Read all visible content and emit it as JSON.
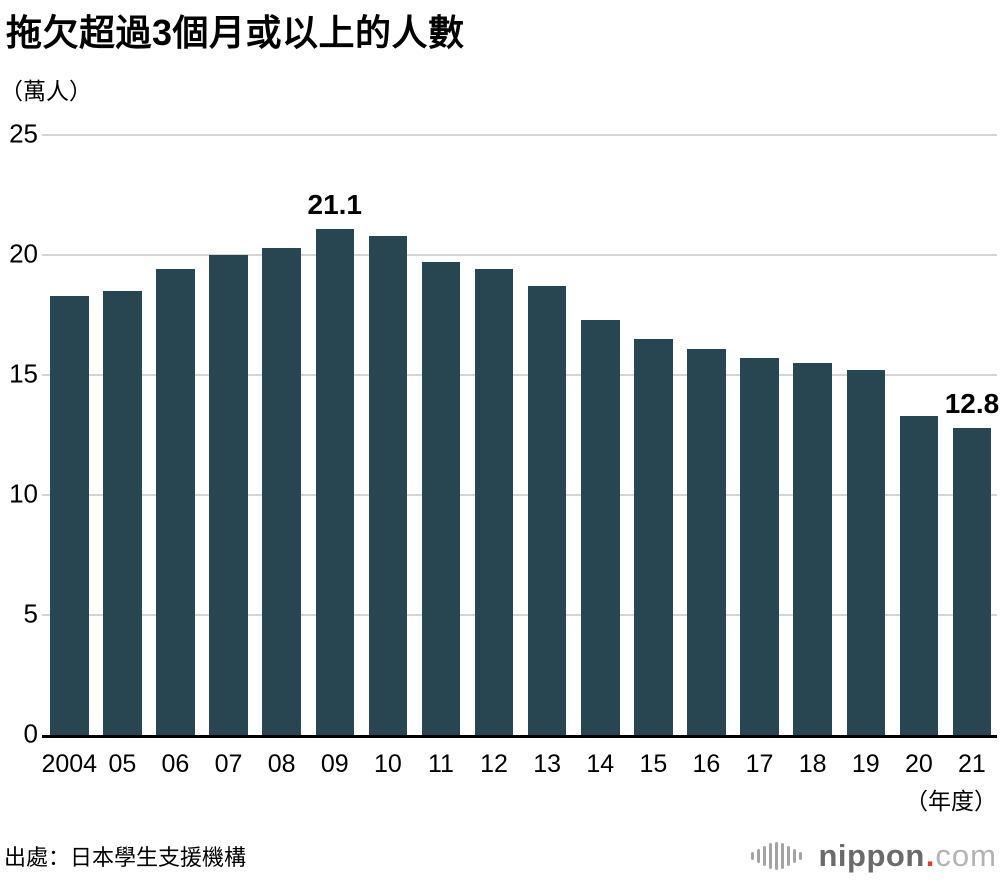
{
  "page": {
    "title": "拖欠超過3個月或以上的人數",
    "unit_label": "（萬人）",
    "x_axis_suffix": "（年度）",
    "source": "出處：日本學生支援機構",
    "logo": {
      "name": "nippon.com",
      "icon": "soundwave-icon",
      "text_main": "nippon",
      "dot": ".",
      "text_suffix": "com"
    }
  },
  "chart_data": {
    "type": "bar",
    "title": "拖欠超過3個月或以上的人數",
    "ylabel": "萬人",
    "xlabel": "年度",
    "categories": [
      "2004",
      "05",
      "06",
      "07",
      "08",
      "09",
      "10",
      "11",
      "12",
      "13",
      "14",
      "15",
      "16",
      "17",
      "18",
      "19",
      "20",
      "21"
    ],
    "values": [
      18.3,
      18.5,
      19.4,
      20.0,
      20.3,
      21.1,
      20.8,
      19.7,
      19.4,
      18.7,
      17.3,
      16.5,
      16.1,
      15.7,
      15.5,
      15.2,
      13.3,
      12.8
    ],
    "annotations": [
      {
        "index": 5,
        "label": "21.1"
      },
      {
        "index": 17,
        "label": "12.8"
      }
    ],
    "ylim": [
      0,
      25
    ],
    "yticks": [
      0,
      5,
      10,
      15,
      20,
      25
    ],
    "grid": true,
    "legend": "none",
    "bar_color": "#284652",
    "gridline_color": "#d4d4d4",
    "axis_color": "#000000"
  }
}
